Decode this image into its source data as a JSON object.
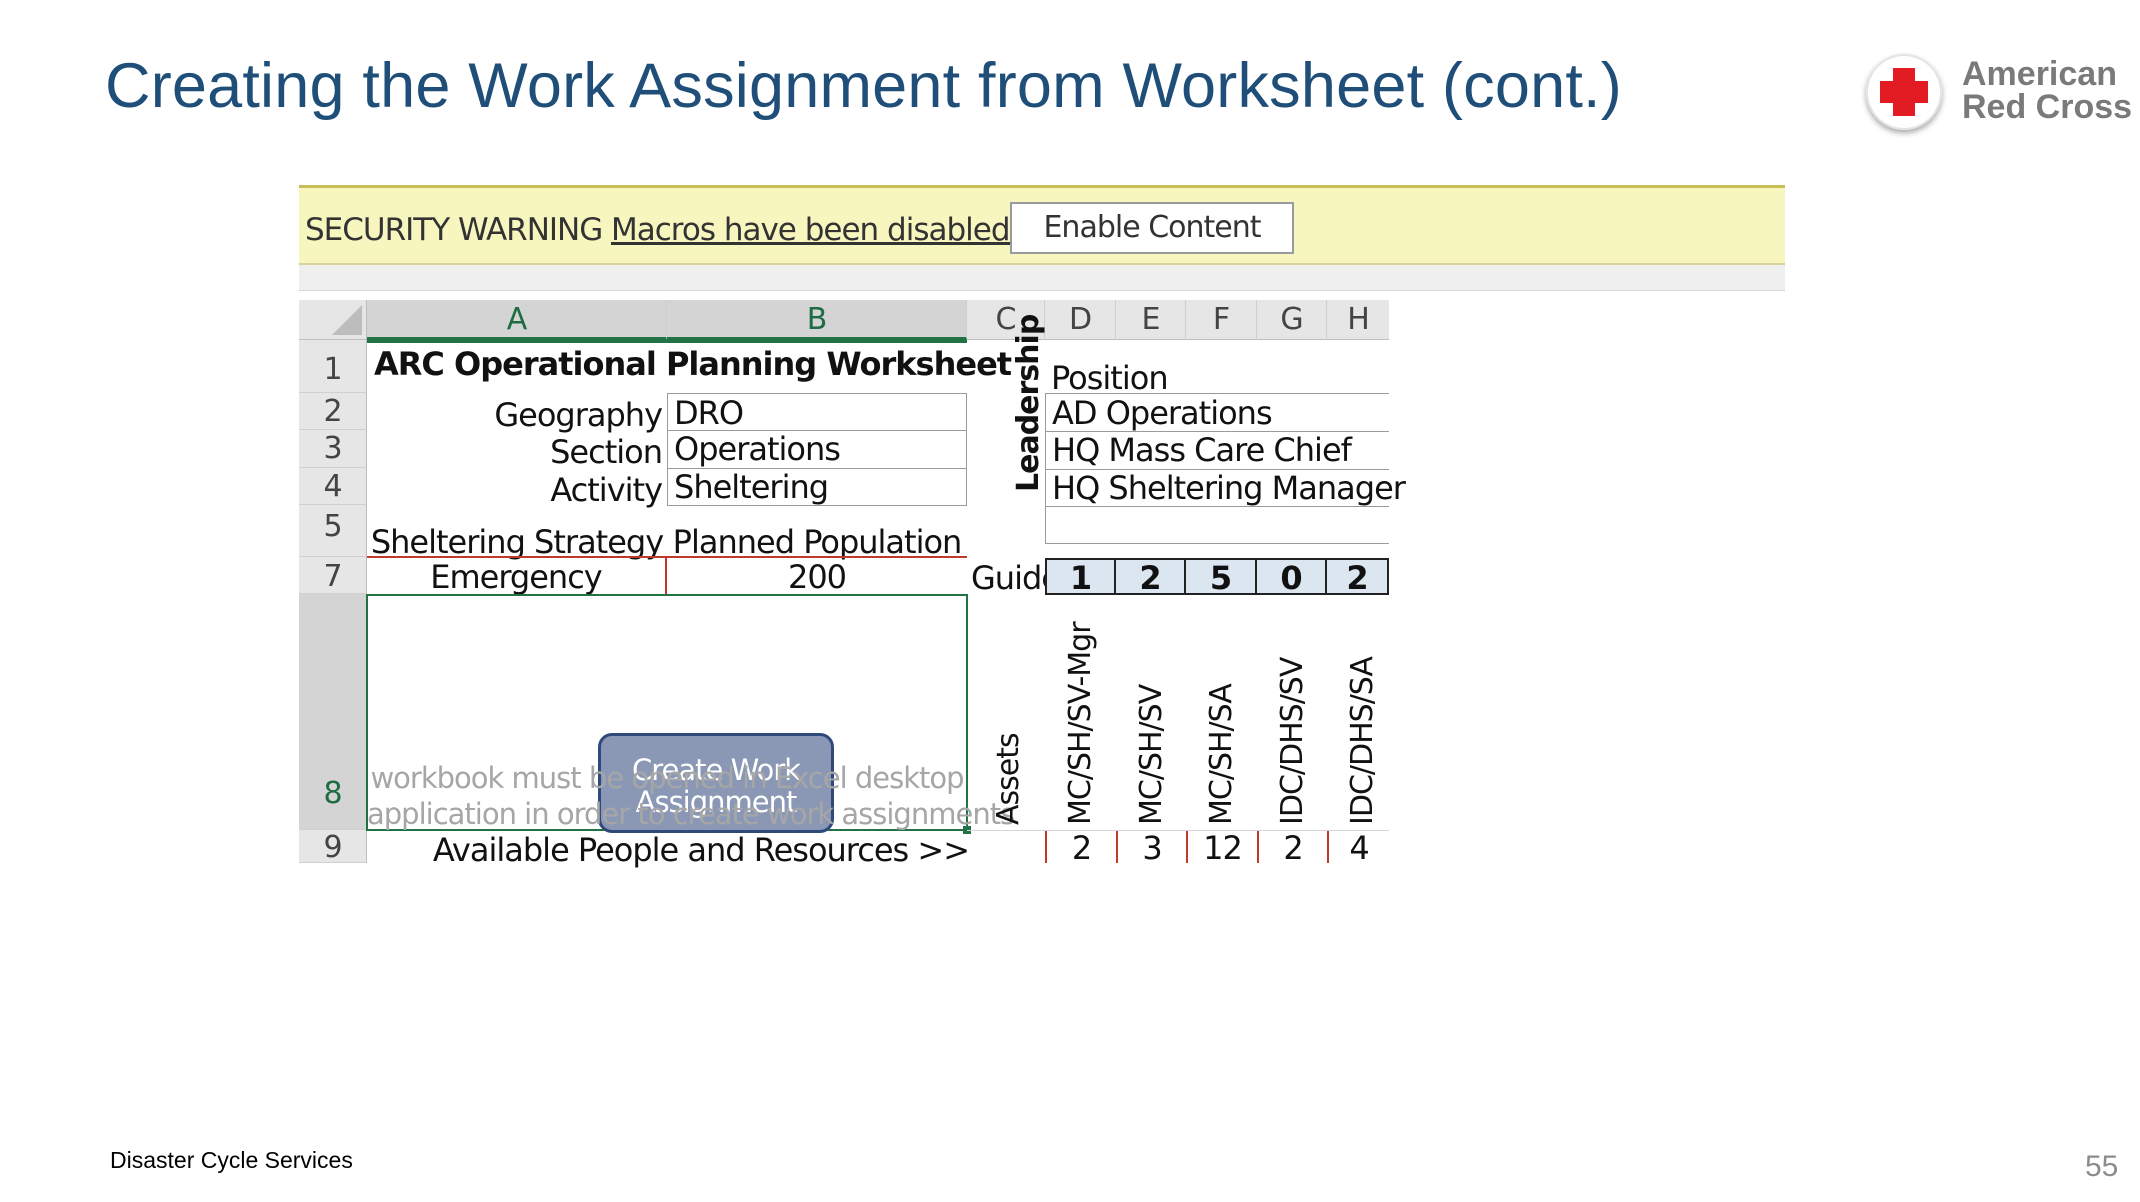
{
  "slide": {
    "title": "Creating the Work Assignment from Worksheet (cont.)",
    "footer": "Disaster Cycle Services",
    "page_number": "55",
    "logo": {
      "line1": "American",
      "line2": "Red Cross",
      "icon": "red-cross-icon"
    }
  },
  "security_bar": {
    "warning": "SECURITY WARNING",
    "message": "Macros have been disabled.",
    "enable_button": "Enable Content"
  },
  "columns": [
    "A",
    "B",
    "C",
    "D",
    "E",
    "F",
    "G",
    "H"
  ],
  "rows": [
    "1",
    "2",
    "3",
    "4",
    "5",
    "7",
    "8",
    "9"
  ],
  "worksheet": {
    "title": "ARC Operational Planning Worksheet",
    "labels": {
      "geography": "Geography",
      "section": "Section",
      "activity": "Activity"
    },
    "values": {
      "geography": "DRO",
      "section": "Operations",
      "activity": "Sheltering"
    },
    "strategy_header": "Sheltering Strategy",
    "population_header": "Planned Population",
    "strategy_value": "Emergency",
    "population_value": "200",
    "create_button": {
      "line1": "Create Work",
      "line2": "Assignment"
    },
    "note_line1": "workbook must be opened in Excel desktop",
    "note_line2": "application in order to create work assignments",
    "available_label": "Available People and Resources >>"
  },
  "leadership": {
    "side_label": "Leadership",
    "position_header": "Position",
    "positions": [
      "AD Operations",
      "HQ Mass Care Chief",
      "HQ Sheltering Manager",
      ""
    ]
  },
  "guide": {
    "label": "Guide",
    "values": [
      "1",
      "2",
      "5",
      "0",
      "2"
    ]
  },
  "assets": {
    "label": "Assets",
    "headers": [
      "MC/SH/SV-Mgr",
      "MC/SH/SV",
      "MC/SH/SA",
      "IDC/DHS/SV",
      "IDC/DHS/SA"
    ],
    "available": [
      "2",
      "3",
      "12",
      "2",
      "4"
    ]
  },
  "colors": {
    "title": "#1f4e79",
    "security_bar": "#f8f6bf",
    "excel_green": "#217346",
    "button_fill": "#8a98b6",
    "red_border": "#c0392b",
    "guide_fill": "#dce6f1",
    "cross": "#e31b23"
  }
}
